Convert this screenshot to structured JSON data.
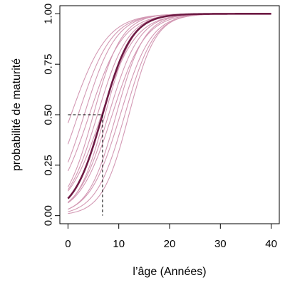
{
  "chart_data": {
    "type": "line",
    "xlabel": "l’âge (Années)",
    "ylabel": "probabilité de maturité",
    "xlim": [
      -1.6,
      41.6
    ],
    "ylim": [
      -0.04,
      1.04
    ],
    "x_ticks": [
      0,
      10,
      20,
      30,
      40
    ],
    "y_ticks": [
      0.0,
      0.25,
      0.5,
      0.75,
      1.0
    ],
    "x_tick_labels": [
      "0",
      "10",
      "20",
      "30",
      "40"
    ],
    "y_tick_labels": [
      "0.00",
      "0.25",
      "0.50",
      "0.75",
      "1.00"
    ],
    "x_range": [
      0,
      40
    ],
    "grid": false,
    "legend": "none",
    "colors": {
      "main_curve": "#6e1a44",
      "sample_curves": "#d399b4",
      "reference_lines": "#000000"
    },
    "main_curve": {
      "x50": 6.8,
      "slope": 0.35
    },
    "sample_curves": [
      {
        "x50": 0.6,
        "slope": 0.28
      },
      {
        "x50": 2.0,
        "slope": 0.3
      },
      {
        "x50": 3.2,
        "slope": 0.32
      },
      {
        "x50": 4.2,
        "slope": 0.3
      },
      {
        "x50": 5.0,
        "slope": 0.36
      },
      {
        "x50": 5.8,
        "slope": 0.33
      },
      {
        "x50": 6.6,
        "slope": 0.3
      },
      {
        "x50": 7.3,
        "slope": 0.37
      },
      {
        "x50": 8.0,
        "slope": 0.33
      },
      {
        "x50": 8.7,
        "slope": 0.31
      },
      {
        "x50": 9.5,
        "slope": 0.36
      },
      {
        "x50": 10.3,
        "slope": 0.33
      },
      {
        "x50": 11.2,
        "slope": 0.35
      },
      {
        "x50": 12.0,
        "slope": 0.38
      }
    ],
    "reference": {
      "x": 6.8,
      "y": 0.5
    }
  }
}
